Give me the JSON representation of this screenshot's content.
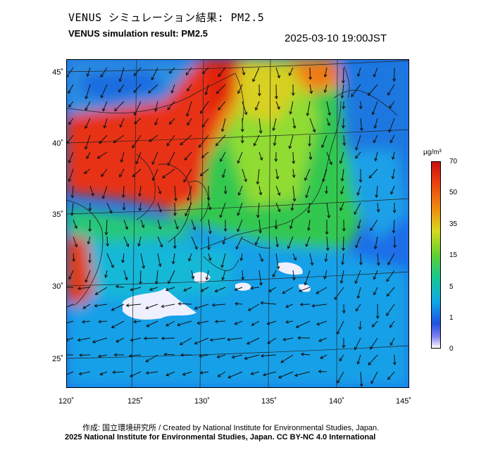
{
  "header": {
    "title_jp": "VENUS シミュレーション結果: PM2.5",
    "title_en": "VENUS simulation result: PM2.5",
    "timestamp": "2025-03-10 19:00JST"
  },
  "map": {
    "lat_labels": [
      "45˚",
      "40˚",
      "35˚",
      "30˚",
      "25˚"
    ],
    "lon_labels": [
      "120˚",
      "125˚",
      "130˚",
      "135˚",
      "140˚",
      "145˚"
    ],
    "colors": {
      "very_high": "#e03010",
      "high": "#f08a10",
      "mid": "#a6e020",
      "low_mid": "#20c86a",
      "low": "#10a8e8",
      "very_low": "#1e6ee8",
      "clean": "#f4f4ff",
      "land_line": "#222222",
      "arrow": "#111111",
      "grid": "#222222"
    }
  },
  "colorbar": {
    "unit": "μg/m³",
    "labels": [
      "70",
      "50",
      "35",
      "15",
      "5",
      "1",
      "0"
    ]
  },
  "footer": {
    "credit": "作成: 国立環境研究所 / Created by National Institute for Environmental Studies, Japan.",
    "license": "2025 National Institute for Environmental Studies, Japan. CC BY-NC 4.0 International"
  }
}
